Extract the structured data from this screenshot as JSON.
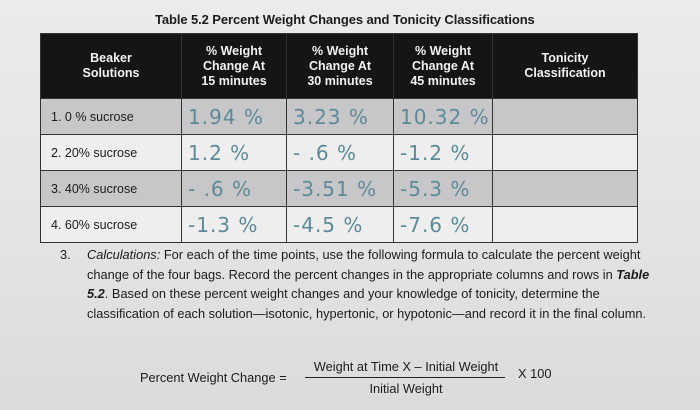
{
  "caption": "Table 5.2 Percent Weight Changes and Tonicity Classifications",
  "table": {
    "headers": {
      "beaker": [
        "Beaker",
        "Solutions"
      ],
      "t15": [
        "% Weight",
        "Change At",
        "15 minutes"
      ],
      "t30": [
        "% Weight",
        "Change At",
        "30 minutes"
      ],
      "t45": [
        "% Weight",
        "Change At",
        "45 minutes"
      ],
      "tonicity": [
        "Tonicity",
        "Classification"
      ]
    },
    "rows": [
      {
        "solution": "1. 0 % sucrose",
        "t15": "1.94 %",
        "t30": "3.23 %",
        "t45": "10.32 %",
        "tonicity": ""
      },
      {
        "solution": "2. 20% sucrose",
        "t15": "1.2 %",
        "t30": "- .6 %",
        "t45": "-1.2 %",
        "tonicity": ""
      },
      {
        "solution": "3. 40% sucrose",
        "t15": "- .6 %",
        "t30": "-3.51 %",
        "t45": "-5.3 %",
        "tonicity": ""
      },
      {
        "solution": "4. 60% sucrose",
        "t15": "-1.3 %",
        "t30": "-4.5 %",
        "t45": "-7.6 %",
        "tonicity": ""
      }
    ]
  },
  "step": {
    "number": "3.",
    "lead": "Calculations:",
    "text_1": " For each of the time points, use the following formula to calculate the percent weight change of the four bags. Record the percent changes in the appropriate columns and rows in ",
    "table_ref": "Table 5.2",
    "text_2": ". Based on these percent weight changes and your knowledge of tonicity, determine the classification of each solution—isotonic, hypertonic, or hypotonic—and record it in the final column."
  },
  "formula": {
    "label": "Percent Weight Change =",
    "numerator": "Weight at Time X – Initial Weight",
    "denominator": "Initial Weight",
    "multiplier": "X 100"
  }
}
